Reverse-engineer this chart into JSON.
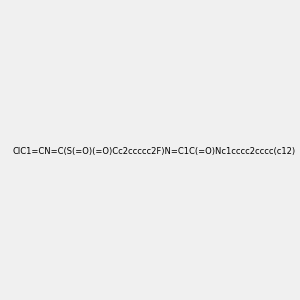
{
  "smiles": "ClC1=CN=C(S(=O)(=O)Cc2ccccc2F)N=C1C(=O)Nc1cccc2cccc(c12)",
  "title": "",
  "background_color": "#f0f0f0",
  "img_size": [
    300,
    300
  ]
}
